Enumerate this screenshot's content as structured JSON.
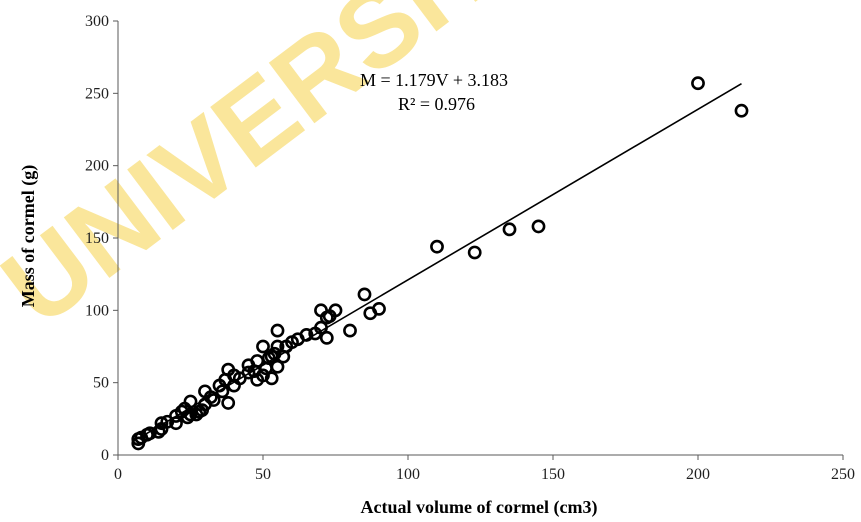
{
  "watermark": {
    "text": "UNIVERSITY OF",
    "color": "#f6d24a"
  },
  "colors": {
    "points": "#000000",
    "axis": "#5a5a5a",
    "trendline": "#000000"
  },
  "chart_data": {
    "type": "scatter",
    "title": "",
    "xlabel": "Actual volume of cormel (cm3)",
    "ylabel": "Mass of cormel (g)",
    "xlim": [
      0,
      250
    ],
    "ylim": [
      0,
      300
    ],
    "x_ticks": [
      0,
      50,
      100,
      150,
      200,
      250
    ],
    "y_ticks": [
      0,
      50,
      100,
      150,
      200,
      250,
      300
    ],
    "grid": false,
    "legend": "none",
    "marker": "open-circle",
    "series": [
      {
        "points": [
          [
            7,
            8
          ],
          [
            7,
            11
          ],
          [
            8,
            12
          ],
          [
            10,
            14
          ],
          [
            11,
            15
          ],
          [
            14,
            16
          ],
          [
            15,
            18
          ],
          [
            15,
            22
          ],
          [
            17,
            23
          ],
          [
            20,
            22
          ],
          [
            20,
            27
          ],
          [
            22,
            30
          ],
          [
            23,
            32
          ],
          [
            24,
            26
          ],
          [
            25,
            37
          ],
          [
            25,
            28
          ],
          [
            27,
            28
          ],
          [
            28,
            30
          ],
          [
            29,
            31
          ],
          [
            30,
            35
          ],
          [
            30,
            44
          ],
          [
            32,
            40
          ],
          [
            33,
            38
          ],
          [
            35,
            48
          ],
          [
            36,
            44
          ],
          [
            37,
            52
          ],
          [
            38,
            36
          ],
          [
            38,
            59
          ],
          [
            40,
            48
          ],
          [
            40,
            55
          ],
          [
            42,
            53
          ],
          [
            45,
            57
          ],
          [
            45,
            62
          ],
          [
            47,
            58
          ],
          [
            48,
            52
          ],
          [
            48,
            65
          ],
          [
            50,
            55
          ],
          [
            50,
            75
          ],
          [
            51,
            60
          ],
          [
            52,
            67
          ],
          [
            53,
            53
          ],
          [
            53,
            68
          ],
          [
            54,
            70
          ],
          [
            55,
            61
          ],
          [
            55,
            75
          ],
          [
            55,
            86
          ],
          [
            57,
            68
          ],
          [
            58,
            75
          ],
          [
            60,
            78
          ],
          [
            62,
            80
          ],
          [
            65,
            83
          ],
          [
            68,
            84
          ],
          [
            70,
            88
          ],
          [
            70,
            100
          ],
          [
            72,
            81
          ],
          [
            72,
            95
          ],
          [
            73,
            96
          ],
          [
            75,
            100
          ],
          [
            80,
            86
          ],
          [
            85,
            111
          ],
          [
            87,
            98
          ],
          [
            90,
            101
          ],
          [
            110,
            144
          ],
          [
            123,
            140
          ],
          [
            135,
            156
          ],
          [
            145,
            158
          ],
          [
            200,
            257
          ],
          [
            215,
            238
          ]
        ]
      }
    ],
    "trendline": {
      "slope": 1.179,
      "intercept": 3.183,
      "x_range": [
        7,
        215
      ],
      "equation_text": "M = 1.179V + 3.183",
      "r2_text": "R² = 0.976"
    }
  }
}
